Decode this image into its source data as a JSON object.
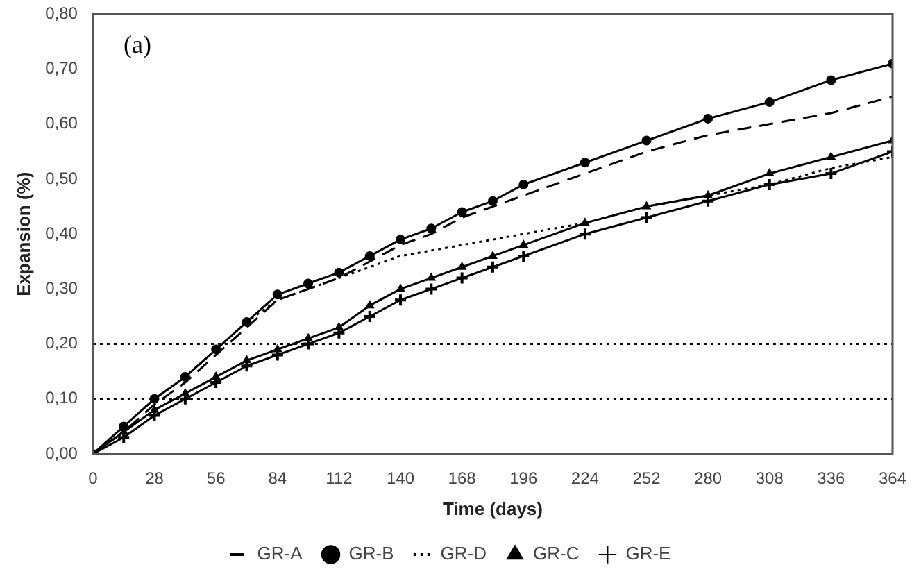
{
  "chart_data": {
    "type": "line",
    "xlabel": "Time (days)",
    "ylabel": "Expansion (%)",
    "annotations": [
      "(a)"
    ],
    "x": [
      0,
      14,
      28,
      42,
      56,
      70,
      84,
      98,
      112,
      126,
      140,
      154,
      168,
      182,
      196,
      224,
      252,
      280,
      308,
      336,
      364
    ],
    "series": [
      {
        "name": "GR-A",
        "color": "#000000",
        "line_style": "dashed",
        "marker": "none",
        "values": [
          0,
          0.04,
          0.09,
          0.13,
          0.18,
          0.23,
          0.28,
          0.3,
          0.32,
          0.35,
          0.38,
          0.4,
          0.43,
          0.45,
          0.47,
          0.51,
          0.55,
          0.58,
          0.6,
          0.62,
          0.65
        ]
      },
      {
        "name": "GR-B",
        "color": "#000000",
        "line_style": "solid",
        "marker": "circle",
        "values": [
          0,
          0.05,
          0.1,
          0.14,
          0.19,
          0.24,
          0.29,
          0.31,
          0.33,
          0.36,
          0.39,
          0.41,
          0.44,
          0.46,
          0.49,
          0.53,
          0.57,
          0.61,
          0.64,
          0.68,
          0.71
        ]
      },
      {
        "name": "GR-D",
        "color": "#000000",
        "line_style": "dotted",
        "marker": "none",
        "values": [
          0,
          0.05,
          0.1,
          0.14,
          0.19,
          0.24,
          0.28,
          0.3,
          0.32,
          0.34,
          0.36,
          0.37,
          0.38,
          0.39,
          0.4,
          0.42,
          0.45,
          0.47,
          0.49,
          0.52,
          0.54
        ]
      },
      {
        "name": "GR-C",
        "color": "#000000",
        "line_style": "solid",
        "marker": "triangle",
        "values": [
          0,
          0.04,
          0.08,
          0.11,
          0.14,
          0.17,
          0.19,
          0.21,
          0.23,
          0.27,
          0.3,
          0.32,
          0.34,
          0.36,
          0.38,
          0.42,
          0.45,
          0.47,
          0.51,
          0.54,
          0.57
        ]
      },
      {
        "name": "GR-E",
        "color": "#000000",
        "line_style": "solid",
        "marker": "cross",
        "values": [
          0,
          0.03,
          0.07,
          0.1,
          0.13,
          0.16,
          0.18,
          0.2,
          0.22,
          0.25,
          0.28,
          0.3,
          0.32,
          0.34,
          0.36,
          0.4,
          0.43,
          0.46,
          0.49,
          0.51,
          0.55
        ]
      }
    ],
    "xlim": [
      0,
      364
    ],
    "xticks": [
      0,
      28,
      56,
      84,
      112,
      140,
      168,
      196,
      224,
      252,
      280,
      308,
      336,
      364
    ],
    "ylim": [
      0,
      0.8
    ],
    "yticks": [
      {
        "value": 0,
        "label": "0,00"
      },
      {
        "value": 0.1,
        "label": "0,10"
      },
      {
        "value": 0.2,
        "label": "0,20"
      },
      {
        "value": 0.3,
        "label": "0,30"
      },
      {
        "value": 0.4,
        "label": "0,40"
      },
      {
        "value": 0.5,
        "label": "0,50"
      },
      {
        "value": 0.6,
        "label": "0,60"
      },
      {
        "value": 0.7,
        "label": "0,70"
      },
      {
        "value": 0.8,
        "label": "0,80"
      }
    ],
    "ref_lines": [
      {
        "axis": "y",
        "value": 0.2,
        "line_style": "dotted",
        "color": "#000000"
      },
      {
        "axis": "y",
        "value": 0.1,
        "line_style": "dotted",
        "color": "#000000"
      }
    ],
    "grid": false,
    "legend": "bottom"
  }
}
